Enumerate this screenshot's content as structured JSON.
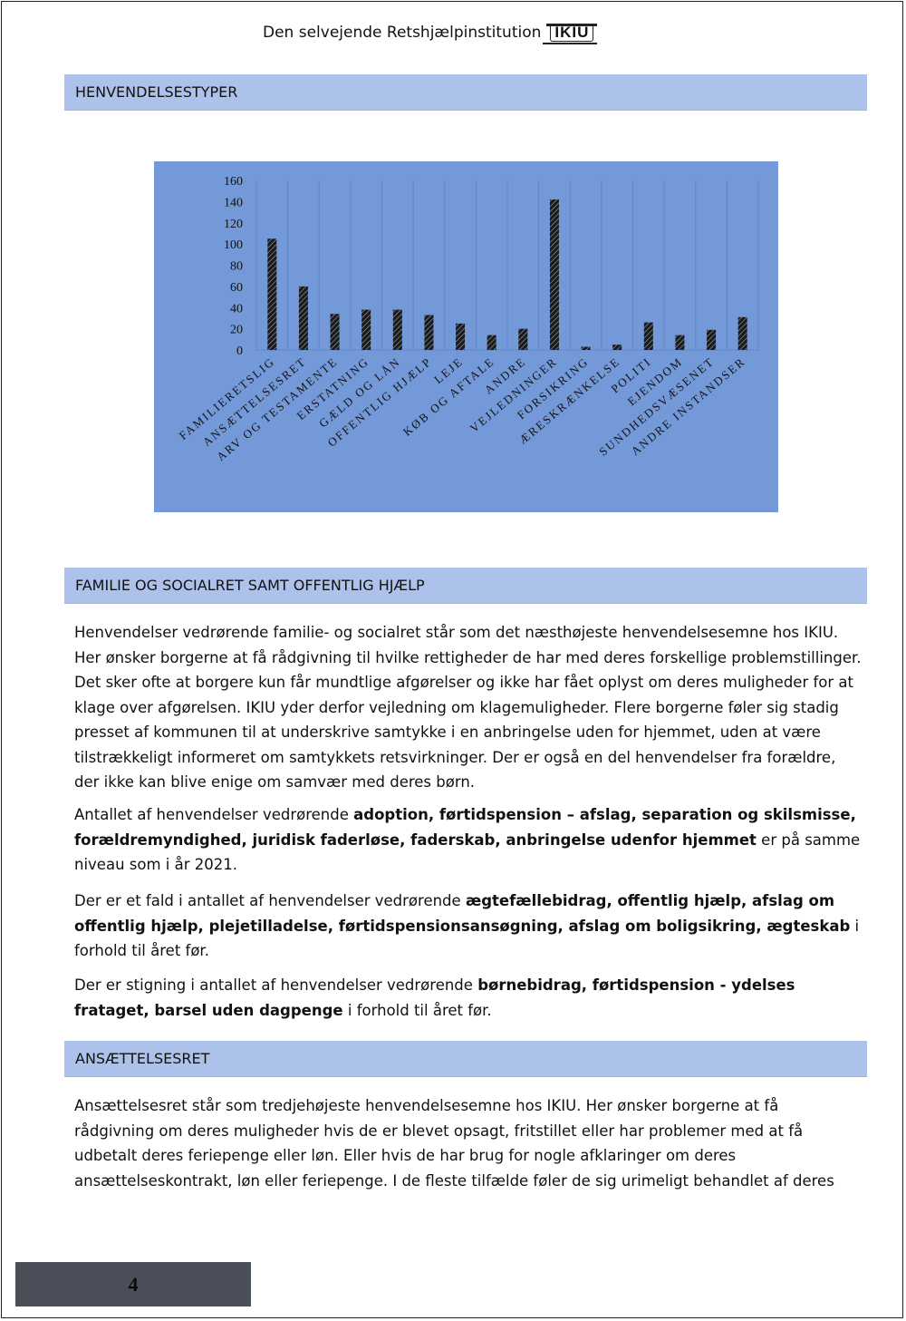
{
  "header": {
    "institution": "Den selvejende Retshjælpinstitution",
    "logo_text": "IKIU"
  },
  "sections": {
    "types_title": "HENVENDELSESTYPER",
    "family_title": "FAMILIE OG SOCIALRET SAMT OFFENTLIG HJÆLP",
    "employment_title": "ANSÆTTELSESRET"
  },
  "colors": {
    "band": "#adc2ea",
    "chart_bg": "#7399d9",
    "bar": "#1a1a1a",
    "footer": "#4a4f5a"
  },
  "chart_data": {
    "type": "bar",
    "categories": [
      "FAMILIERETSLIG",
      "ANSÆTTELSESRET",
      "ARV OG TESTAMENTE",
      "ERSTATNING",
      "GÆLD OG LÅN",
      "OFFENTLIG HJÆLP",
      "LEJE",
      "KØB OG AFTALE",
      "ANDRE",
      "VEJLEDNINGER",
      "FORSIKRING",
      "ÆRESKRÆNKELSE",
      "POLITI",
      "EJENDOM",
      "SUNDHEDSVÆSENET",
      "ANDRE INSTANDSER"
    ],
    "values": [
      105,
      60,
      34,
      38,
      38,
      33,
      25,
      14,
      20,
      142,
      3,
      5,
      26,
      14,
      19,
      31
    ],
    "yticks": [
      "0",
      "20",
      "40",
      "60",
      "80",
      "100",
      "120",
      "140",
      "160"
    ],
    "ylim": [
      0,
      160
    ],
    "grid": true,
    "legend": "none"
  },
  "family": {
    "p1": "Henvendelser vedrørende familie- og socialret står som det næsthøjeste henvendelsesemne hos IKIU. Her ønsker borgerne at få rådgivning til hvilke rettigheder de har med deres forskellige problemstillinger. Det sker ofte at borgere kun får mundtlige afgørelser og ikke har fået oplyst om deres muligheder for at klage over afgørelsen. IKIU yder derfor vejledning om klagemuligheder. Flere borgerne føler sig stadig presset af kommunen til at underskrive samtykke i en anbringelse uden for hjemmet, uden at være tilstrækkeligt informeret om samtykkets retsvirkninger. Der er også en del henvendelser fra forældre, der ikke kan blive enige om samvær med deres børn.",
    "p2_pre": "Antallet af henvendelser vedrørende ",
    "p2_bold": "adoption, førtidspension – afslag, separation og skilsmisse, forældremyndighed, juridisk faderløse, faderskab, anbringelse udenfor hjemmet",
    "p2_post": " er på samme niveau som i år 2021.",
    "p3_pre": "Der er et fald i antallet af henvendelser vedrørende ",
    "p3_bold": "ægtefællebidrag, offentlig hjælp, afslag om offentlig hjælp, plejetilladelse, førtidspensionsansøgning, afslag om boligsikring, ægteskab",
    "p3_post": " i forhold til året før.",
    "p4_pre": "Der er stigning i antallet af henvendelser vedrørende ",
    "p4_bold": "børnebidrag, førtidspension - ydelses frataget, barsel uden dagpenge",
    "p4_post": " i forhold til året før."
  },
  "employment": {
    "p1": "Ansættelsesret står som tredjehøjeste henvendelsesemne hos IKIU. Her ønsker borgerne at få rådgivning om deres muligheder hvis de er blevet opsagt, fritstillet eller har problemer med at få udbetalt deres feriepenge eller løn. Eller hvis de har brug for nogle afklaringer om deres ansættelseskontrakt, løn eller feriepenge. I de fleste tilfælde føler de sig urimeligt behandlet af deres"
  },
  "footer": {
    "page_number": "4"
  }
}
